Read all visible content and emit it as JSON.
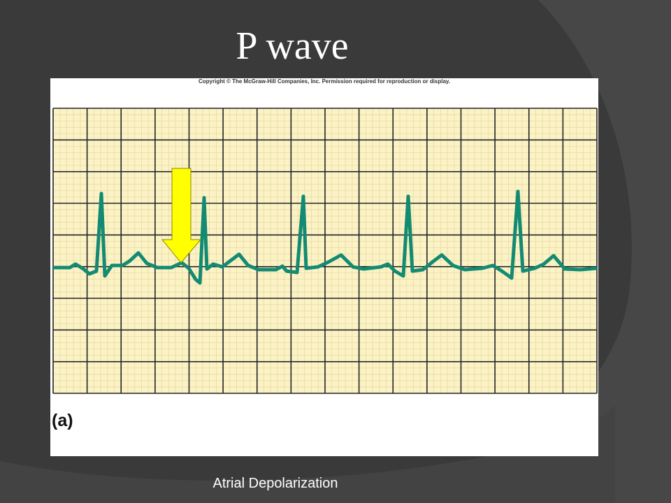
{
  "slide": {
    "title": "P wave",
    "figure": {
      "copyright": "Copyright © The McGraw-Hill Companies, Inc. Permission required for reproduction or display.",
      "panel_label": "(a)"
    },
    "caption": "Atrial Depolarization"
  }
}
